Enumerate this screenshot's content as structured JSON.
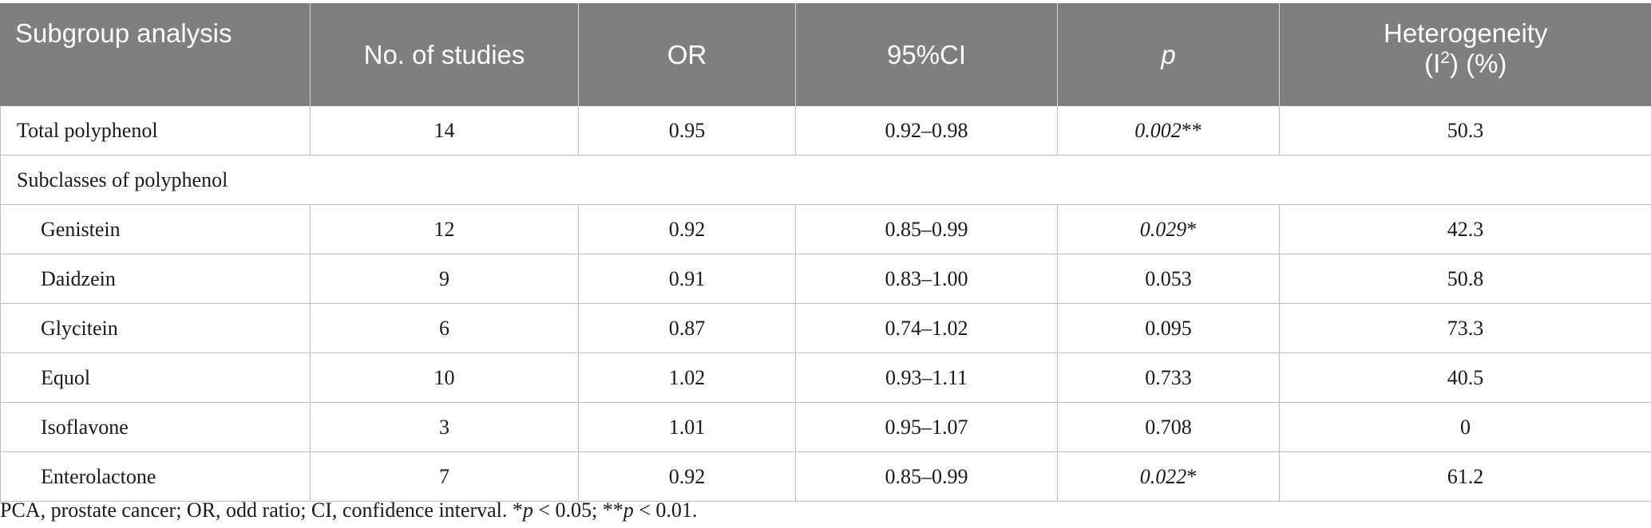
{
  "table": {
    "headers": {
      "subgroup": "Subgroup analysis",
      "studies": "No. of studies",
      "or": "OR",
      "ci": "95%CI",
      "p": "p",
      "het_line1": "Heterogeneity",
      "het_line2_pre": "(I",
      "het_sup": "2",
      "het_line2_post": ") (%)"
    },
    "total_row": {
      "label": "Total polyphenol",
      "studies": "14",
      "or": "0.95",
      "ci": "0.92–0.98",
      "p": "0.002",
      "p_mark": "**",
      "het": "50.3"
    },
    "section_label": "Subclasses of polyphenol",
    "rows": [
      {
        "label": "Genistein",
        "studies": "12",
        "or": "0.92",
        "ci": "0.85–0.99",
        "p": "0.029",
        "p_mark": "*",
        "het": "42.3"
      },
      {
        "label": "Daidzein",
        "studies": "9",
        "or": "0.91",
        "ci": "0.83–1.00",
        "p": "0.053",
        "p_mark": "",
        "het": "50.8"
      },
      {
        "label": "Glycitein",
        "studies": "6",
        "or": "0.87",
        "ci": "0.74–1.02",
        "p": "0.095",
        "p_mark": "",
        "het": "73.3"
      },
      {
        "label": "Equol",
        "studies": "10",
        "or": "1.02",
        "ci": "0.93–1.11",
        "p": "0.733",
        "p_mark": "",
        "het": "40.5"
      },
      {
        "label": "Isoflavone",
        "studies": "3",
        "or": "1.01",
        "ci": "0.95–1.07",
        "p": "0.708",
        "p_mark": "",
        "het": "0"
      },
      {
        "label": "Enterolactone",
        "studies": "7",
        "or": "0.92",
        "ci": "0.85–0.99",
        "p": "0.022",
        "p_mark": "*",
        "het": "61.2"
      }
    ]
  },
  "footnote": {
    "text": "PCA, prostate cancer; OR, odd ratio; CI, confidence interval. *",
    "p1": "p",
    "t1": " < 0.05; **",
    "p2": "p",
    "t2": " < 0.01."
  }
}
